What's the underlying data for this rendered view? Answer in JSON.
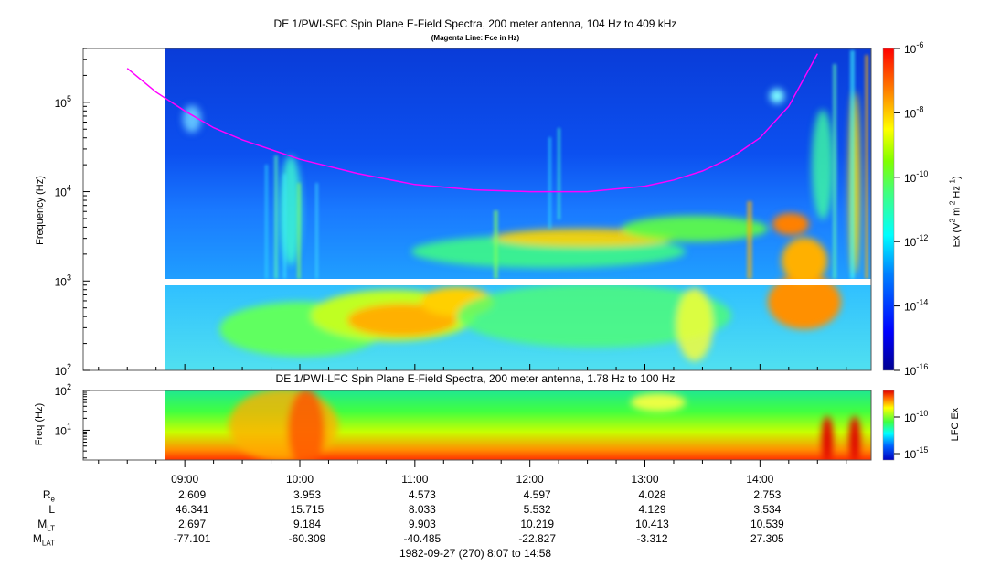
{
  "chart_data": [
    {
      "type": "heatmap",
      "title": "DE 1/PWI-SFC  Spin Plane E-Field Spectra, 200 meter antenna, 104 Hz to 409 kHz",
      "subtitle": "(Magenta Line: Fce in Hz)",
      "ylabel": "Frequency (Hz)",
      "yscale": "log",
      "ylim": [
        100,
        400000
      ],
      "yticks": [
        {
          "value": 100,
          "base": "10",
          "exp": "2"
        },
        {
          "value": 1000,
          "base": "10",
          "exp": "3"
        },
        {
          "value": 10000,
          "base": "10",
          "exp": "4"
        },
        {
          "value": 100000,
          "base": "10",
          "exp": "5"
        }
      ],
      "colorbar": {
        "label_prefix": "Ex (V",
        "label_mid": " m",
        "label_mid2": " Hz",
        "label_suffix": ")",
        "sup1": "2",
        "sup2": "-2",
        "sup3": "-1",
        "scale": "log",
        "range": [
          1e-16,
          1e-06
        ],
        "ticks": [
          {
            "base": "10",
            "exp": "-6"
          },
          {
            "base": "10",
            "exp": "-8"
          },
          {
            "base": "10",
            "exp": "-10"
          },
          {
            "base": "10",
            "exp": "-12"
          },
          {
            "base": "10",
            "exp": "-14"
          },
          {
            "base": "10",
            "exp": "-16"
          }
        ]
      },
      "fce_line": {
        "color": "#ff00ff",
        "x": [
          8.5,
          8.75,
          9.0,
          9.25,
          9.5,
          10.0,
          10.5,
          11.0,
          11.5,
          12.0,
          12.5,
          13.0,
          13.25,
          13.5,
          13.75,
          14.0,
          14.25,
          14.5
        ],
        "y": [
          240000,
          130000,
          80000,
          52000,
          38000,
          23000,
          16000,
          12000,
          10500,
          10000,
          10000,
          11500,
          13500,
          17000,
          24000,
          40000,
          90000,
          350000
        ]
      }
    },
    {
      "type": "heatmap",
      "title": "DE 1/PWI-LFC  Spin Plane E-Field Spectra, 200 meter antenna, 1.78 Hz to 100 Hz",
      "ylabel": "Freq (Hz)",
      "yscale": "log",
      "ylim": [
        1.78,
        100
      ],
      "yticks": [
        {
          "value": 10,
          "base": "10",
          "exp": "1"
        },
        {
          "value": 100,
          "base": "10",
          "exp": "2"
        }
      ],
      "colorbar": {
        "label": "LFC Ex",
        "scale": "log",
        "ticks": [
          {
            "base": "10",
            "exp": "-10"
          },
          {
            "base": "10",
            "exp": "-15"
          }
        ]
      }
    }
  ],
  "time_axis": {
    "start_hour": 8.1167,
    "end_hour": 14.9667,
    "labels": [
      {
        "hour": 9,
        "text": "09:00"
      },
      {
        "hour": 10,
        "text": "10:00"
      },
      {
        "hour": 11,
        "text": "11:00"
      },
      {
        "hour": 12,
        "text": "12:00"
      },
      {
        "hour": 13,
        "text": "13:00"
      },
      {
        "hour": 14,
        "text": "14:00"
      }
    ]
  },
  "ephemeris": [
    {
      "name": "R",
      "sub": "e",
      "values": [
        "2.609",
        "3.953",
        "4.573",
        "4.597",
        "4.028",
        "2.753"
      ]
    },
    {
      "name": "L",
      "sub": "",
      "values": [
        "46.341",
        "15.715",
        "8.033",
        "5.532",
        "4.129",
        "3.534"
      ]
    },
    {
      "name": "M",
      "sub": "LT",
      "values": [
        "2.697",
        "9.184",
        "9.903",
        "10.219",
        "10.413",
        "10.539"
      ]
    },
    {
      "name": "M",
      "sub": "LAT",
      "values": [
        "-77.101",
        "-60.309",
        "-40.485",
        "-22.827",
        "-3.312",
        "27.305"
      ]
    }
  ],
  "footer": "1982-09-27 (270) 8:07 to 14:58"
}
